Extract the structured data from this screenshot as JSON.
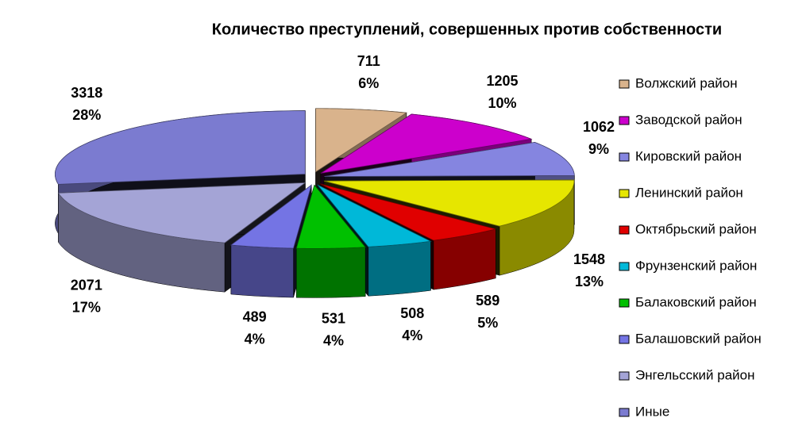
{
  "chart_data": {
    "type": "pie",
    "title": "Количество преступлений, совершенных против собственности",
    "categories": [
      "Волжский район",
      "Заводской район",
      "Кировский район",
      "Ленинский  район",
      "Октябрьский район",
      "Фрунзенский  район",
      "Балаковский район",
      "Балашовский район",
      "Энгельсский район",
      "Иные"
    ],
    "values": [
      711,
      1205,
      1062,
      1548,
      589,
      508,
      531,
      489,
      2071,
      3318
    ],
    "percent_labels": [
      "6%",
      "10%",
      "9%",
      "13%",
      "5%",
      "4%",
      "4%",
      "4%",
      "17%",
      "28%"
    ],
    "colors": [
      "#d9b38c",
      "#cc00cc",
      "#8585e0",
      "#e6e600",
      "#e00000",
      "#00b8d8",
      "#00c000",
      "#7474e4",
      "#a4a4d6",
      "#7b7bd0"
    ],
    "legend": "right"
  }
}
